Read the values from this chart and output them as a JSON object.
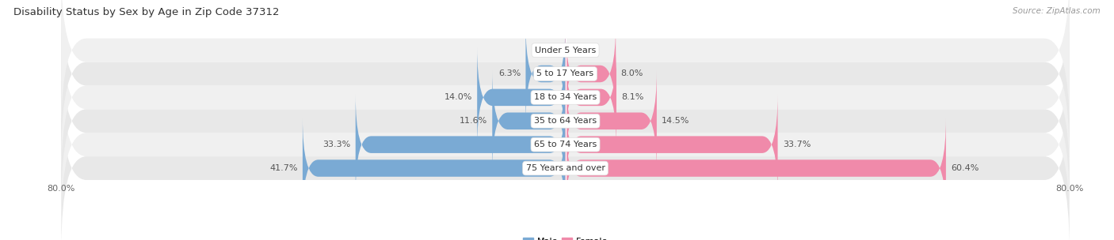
{
  "title": "Disability Status by Sex by Age in Zip Code 37312",
  "source": "Source: ZipAtlas.com",
  "categories": [
    "Under 5 Years",
    "5 to 17 Years",
    "18 to 34 Years",
    "35 to 64 Years",
    "65 to 74 Years",
    "75 Years and over"
  ],
  "male_values": [
    0.0,
    6.3,
    14.0,
    11.6,
    33.3,
    41.7
  ],
  "female_values": [
    0.0,
    8.0,
    8.1,
    14.5,
    33.7,
    60.4
  ],
  "male_color": "#7aaad4",
  "female_color": "#f08aaa",
  "row_colors": [
    "#f0f0f0",
    "#e8e8e8",
    "#f0f0f0",
    "#e8e8e8",
    "#f0f0f0",
    "#e8e8e8"
  ],
  "max_value": 80.0,
  "title_fontsize": 9.5,
  "source_fontsize": 7.5,
  "label_fontsize": 8,
  "category_fontsize": 8,
  "axis_label_fontsize": 8,
  "legend_fontsize": 8
}
